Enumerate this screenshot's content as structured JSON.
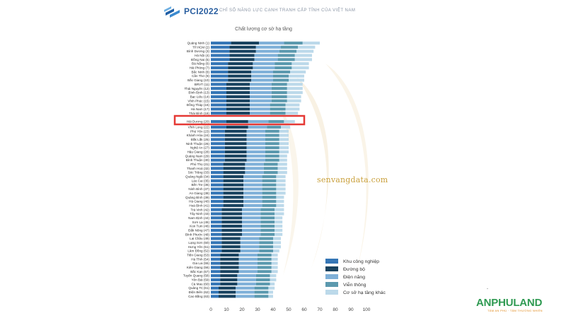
{
  "header": {
    "brand": "PCI2022",
    "subtitle": "CHỈ SỐ NĂNG LỰC CẠNH TRANH CẤP TỈNH CỦA VIỆT NAM"
  },
  "watermark": "senvangdata.com",
  "logo": {
    "name": "ANPHULAND",
    "tagline": "TÂM AN PHÚ · TÂM THƯỜNG NHIÊN"
  },
  "colors": {
    "khu_cong_nghiep": "#3576b6",
    "duong_bo": "#18425f",
    "dien_nang": "#7fb0d8",
    "vien_thong": "#5b99ae",
    "co_so_khac": "#bcd9ea",
    "highlight": "#e53935",
    "watermark_shape": "#f3e6cc"
  },
  "chart_data": {
    "type": "bar",
    "orientation": "horizontal",
    "stacked": true,
    "title": "Chất lượng cơ sở hạ tầng",
    "xlim": [
      0,
      100
    ],
    "xticks": [
      "0",
      "10",
      "20",
      "30",
      "40",
      "50",
      "60",
      "70",
      "80",
      "90",
      "100"
    ],
    "categories": [
      "Quảng Ninh (1)",
      "TP.HCM (2)",
      "Bình Dương (3)",
      "Hà Nội (4)",
      "Đồng Nai (5)",
      "Đà Nẵng (6)",
      "Hải Phòng (7)",
      "Bắc Ninh (8)",
      "Cần Thơ (9)",
      "Bắc Giang (10)",
      "BRVT (11)",
      "Thái Nguyên (12)",
      "Bình Định (13)",
      "Bạc Liêu (14)",
      "Vĩnh Phúc (15)",
      "Đồng Tháp (16)",
      "Hà Nam (17)",
      "Thái Bình (18)",
      "Hải Dương (20)",
      "Vĩnh Long (22)",
      "Phú Yên (23)",
      "Khánh Hòa (24)",
      "Đắk Lắk (25)",
      "Ninh Thuận (26)",
      "Nghệ An (27)",
      "Hậu Giang (28)",
      "Quảng Nam (29)",
      "Bình Thuận (30)",
      "Phú Thọ (31)",
      "Thanh Hoá (32)",
      "Sóc Trăng (33)",
      "Quảng Ngãi (34)",
      "Lào Cai (35)",
      "Bến Tre (36)",
      "Ninh Bình (37)",
      "An Giang (38)",
      "Quảng Bình (39)",
      "Hà Giang (40)",
      "Hoà Bình (41)",
      "Trà Vinh (42)",
      "Tây Ninh (43)",
      "Nam Định (44)",
      "Sơn La (45)",
      "Kon Tum (46)",
      "Đắk Nông (47)",
      "Bình Phước (48)",
      "Lai Châu (49)",
      "Lạng Sơn (50)",
      "Hưng Yên (51)",
      "Lâm Đồng (52)",
      "Tiền Giang (53)",
      "Hà Tĩnh (54)",
      "Gia Lai (55)",
      "Kiên Giang (56)",
      "Bắc Kạn (57)",
      "Tuyên Quang (58)",
      "Yên Bái (59)",
      "Cà Mau (60)",
      "Quảng Trị (61)",
      "Điện Biên (62)",
      "Cao Bằng (63)"
    ],
    "highlighted_category": "Hải Dương (20)",
    "series": [
      {
        "name": "Khu công nghiệp",
        "values": [
          13,
          12,
          12,
          12,
          12,
          11,
          11,
          11,
          11,
          11,
          10,
          10,
          10,
          10,
          10,
          10,
          10,
          10,
          10,
          10,
          9,
          9,
          9,
          9,
          9,
          9,
          9,
          9,
          8,
          8,
          8,
          8,
          8,
          8,
          8,
          8,
          8,
          8,
          8,
          7,
          7,
          7,
          7,
          7,
          7,
          7,
          7,
          7,
          7,
          7,
          6,
          6,
          6,
          6,
          6,
          6,
          6,
          6,
          5,
          5,
          5
        ]
      },
      {
        "name": "Đường bộ",
        "values": [
          18,
          17,
          17,
          16,
          16,
          16,
          16,
          15,
          15,
          15,
          15,
          15,
          15,
          15,
          15,
          15,
          15,
          15,
          14,
          14,
          14,
          14,
          14,
          14,
          14,
          14,
          14,
          14,
          14,
          14,
          14,
          13,
          13,
          13,
          13,
          13,
          13,
          13,
          13,
          13,
          13,
          13,
          13,
          13,
          13,
          13,
          12,
          12,
          12,
          12,
          12,
          12,
          12,
          12,
          12,
          11,
          11,
          11,
          11,
          11,
          11
        ]
      },
      {
        "name": "Điện năng",
        "values": [
          16,
          16,
          15,
          15,
          15,
          14,
          14,
          14,
          14,
          14,
          14,
          14,
          14,
          14,
          14,
          13,
          13,
          13,
          13,
          12,
          12,
          12,
          12,
          12,
          12,
          12,
          12,
          12,
          12,
          12,
          12,
          12,
          12,
          12,
          12,
          12,
          12,
          12,
          12,
          12,
          12,
          12,
          12,
          12,
          12,
          12,
          12,
          12,
          12,
          12,
          12,
          12,
          12,
          12,
          12,
          12,
          12,
          12,
          12,
          12,
          12
        ]
      },
      {
        "name": "Viễn thông",
        "values": [
          12,
          11,
          11,
          11,
          11,
          11,
          11,
          11,
          10,
          10,
          10,
          10,
          10,
          10,
          10,
          10,
          10,
          10,
          10,
          9,
          9,
          9,
          9,
          9,
          9,
          9,
          9,
          9,
          9,
          9,
          9,
          9,
          9,
          9,
          9,
          9,
          9,
          9,
          9,
          9,
          9,
          9,
          9,
          9,
          9,
          9,
          9,
          9,
          9,
          9,
          9,
          9,
          9,
          9,
          9,
          9,
          9,
          9,
          9,
          9,
          9
        ]
      },
      {
        "name": "Cơ sở hạ tầng khác",
        "values": [
          11,
          11,
          11,
          11,
          11,
          11,
          11,
          10,
          10,
          10,
          10,
          10,
          10,
          9,
          9,
          9,
          9,
          8,
          7,
          6,
          6,
          6,
          6,
          6,
          6,
          6,
          5,
          5,
          6,
          6,
          6,
          6,
          6,
          6,
          6,
          6,
          5,
          5,
          5,
          6,
          6,
          5,
          5,
          5,
          5,
          5,
          5,
          5,
          5,
          4,
          4,
          4,
          4,
          4,
          4,
          4,
          4,
          3,
          4,
          3,
          3
        ]
      }
    ],
    "legend_position": "bottom-right",
    "grid": false
  }
}
